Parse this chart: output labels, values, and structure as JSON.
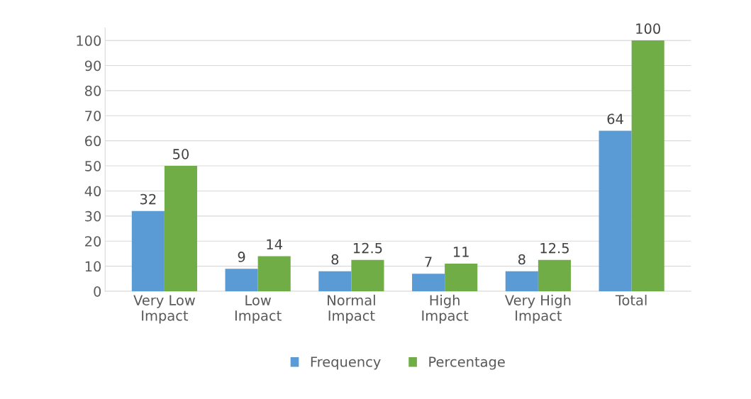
{
  "chart_data": {
    "type": "bar",
    "categories": [
      "Very Low Impact",
      "Low Impact",
      "Normal Impact",
      "High Impact",
      "Very High Impact",
      "Total"
    ],
    "series": [
      {
        "name": "Frequency",
        "color": "#5b9bd5",
        "values": [
          32,
          9,
          8,
          7,
          8,
          64
        ]
      },
      {
        "name": "Percentage",
        "color": "#70ad47",
        "values": [
          50,
          14,
          12.5,
          11,
          12.5,
          100
        ]
      }
    ],
    "ylim": [
      0,
      105
    ],
    "yticks": [
      0,
      10,
      20,
      30,
      40,
      50,
      60,
      70,
      80,
      90,
      100
    ],
    "grid": "y",
    "legend": "bottom",
    "data_labels": true
  }
}
